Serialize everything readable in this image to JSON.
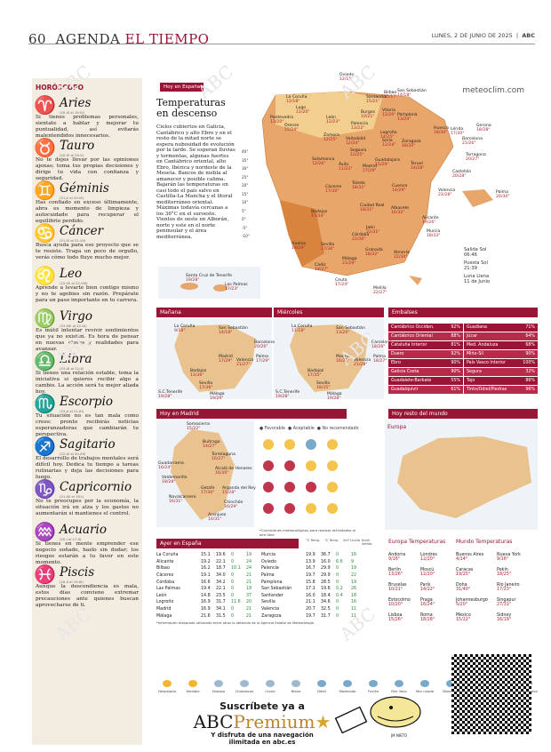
{
  "header": {
    "page": "60",
    "section1": "AGENDA",
    "section2": "EL TIEMPO",
    "date": "LUNES, 2 DE JUNIO DE 2025",
    "brand": "ABC"
  },
  "horoscope": {
    "title": "HORÓSCOPO",
    "signs": [
      {
        "glyph": "♈",
        "name": "Aries",
        "range": "(20-III al 19-IV)",
        "text": "Si tienes problemas personales, sientate a hablar y mejorar tu puntualidad, así evitarás malentendidos innecesarios."
      },
      {
        "glyph": "♉",
        "name": "Tauro",
        "range": "(20-IV al 20-V)",
        "text": "No te dejes llevar por las opiniones ajenas; toma tus propias decisiones y dirige tu vida con confianza y seguridad."
      },
      {
        "glyph": "♊",
        "name": "Géminis",
        "range": "(21-V al 20-VI)",
        "text": "Has confiado en exceso últimamente, abra es momento de limpieza y autocuidado para recuperar el equilibrio perdido."
      },
      {
        "glyph": "♋",
        "name": "Cáncer",
        "range": "(21-VI al 21-VII)",
        "text": "Busca ayuda para ese proyecto que se te resiste. Traga un poco de orgullo, verás cómo todo fluye mucho mejor."
      },
      {
        "glyph": "♌",
        "name": "Leo",
        "range": "(22-VII al 22-VIII)",
        "text": "Aprende a levarte bien contigo mismo y no te agobies sin razón. Prepárate para un paso importante en tu carrera."
      },
      {
        "glyph": "♍",
        "name": "Virgo",
        "range": "(23-VIII al 22-IX)",
        "text": "Es inútil intentar revivir sentimientos que ya no existen. Es hora de pensar en nuevas claves y realidades para avanzar."
      },
      {
        "glyph": "♎",
        "name": "Libra",
        "range": "(23-IX al 22-X)",
        "text": "Si tienes una relación estable, toma la iniciativa si quieres recibir algo a cambio. La acción será tu mejor aliada hoy."
      },
      {
        "glyph": "♏",
        "name": "Escorpio",
        "range": "(23-X al 21-XI)",
        "text": "Tu situación no es tan mala como crees: pronto recibirás noticias esperanzadoras que cambiarán tu perspectiva."
      },
      {
        "glyph": "♐",
        "name": "Sagitario",
        "range": "(22-XI al 20-XII)",
        "text": "El desarrollo de trabajos mentales será difícil hoy. Dedica tu tiempo a tareas rutinarias y deja las decisiones para luego."
      },
      {
        "glyph": "♑",
        "name": "Capricornio",
        "range": "(21-XII al 19-I)",
        "text": "No te preocupes por la economía, la situación irá en alza y los gastos no aumentarán si mantienes el control."
      },
      {
        "glyph": "♒",
        "name": "Acuario",
        "range": "(20-I al 17-II)",
        "text": "Si tienes en mente emprender ese negocio soñado, hazlo sin dudar; los riesgos estarán a tu favor en este momento."
      },
      {
        "glyph": "♓",
        "name": "Piscis",
        "range": "(18-II al 19-III)",
        "text": "Aunque la descendiencia es mala, estos días conviene extremar precauciones ante quienes buscan aprovecharse de ti."
      }
    ]
  },
  "today": {
    "tag": "Hoy en España",
    "title": "Temperaturas en descenso",
    "body": "Cielos cubiertos en Galicia, Cantábrico y alto Ebro y en el resto de la mitad norte se espera nubosidad de evolución por la tarde. Se esperan lluvias y tormentas, algunas fuertes en Cantábrico oriental, alto Ebro, Ibérica y nordeste de la Meseta. Bancos de niebla al amanecer y posible calima. Bajarán las temperaturas en casi todo el país salvo en Castilla-La Mancha y el litoral mediterráneo oriental. Máximas todavía cercanas a los 36°C en el suroeste. Vientos de oeste en Alborán, norte y este en el norte peninsular y el área mediterránea.",
    "brand": "meteoclim.com"
  },
  "scale": [
    "40°",
    "35°",
    "30°",
    "25°",
    "20°",
    "15°",
    "10°",
    "5°",
    "0°",
    "-5°",
    "-10°"
  ],
  "map_cities": [
    {
      "n": "La Coruña",
      "t": "12/18°"
    },
    {
      "n": "Lugo",
      "t": "11/20°"
    },
    {
      "n": "Oviedo",
      "t": "12/15°"
    },
    {
      "n": "Santander",
      "t": "15/21°"
    },
    {
      "n": "Bilbao",
      "t": "15/17°"
    },
    {
      "n": "San Sebastián",
      "t": "14/18°"
    },
    {
      "n": "Pontevedra",
      "t": "12/20°"
    },
    {
      "n": "Orense",
      "t": "15/24°"
    },
    {
      "n": "León",
      "t": "12/23°"
    },
    {
      "n": "Palencia",
      "t": "13/22°"
    },
    {
      "n": "Burgos",
      "t": "10/21°"
    },
    {
      "n": "Vitoria",
      "t": "12/20°"
    },
    {
      "n": "Pamplona",
      "t": "13/24°"
    },
    {
      "n": "Huesca",
      "t": "18/30°"
    },
    {
      "n": "Lérida",
      "t": "17/30°"
    },
    {
      "n": "Gerona",
      "t": "18/28°"
    },
    {
      "n": "Barcelona",
      "t": "21/26°"
    },
    {
      "n": "Logroño",
      "t": "14/25°"
    },
    {
      "n": "Soria",
      "t": "12/24°"
    },
    {
      "n": "Zaragoza",
      "t": "18/30°"
    },
    {
      "n": "Zamora",
      "t": "12/25°"
    },
    {
      "n": "Valladolid",
      "t": "12/24°"
    },
    {
      "n": "Segovia",
      "t": "12/25°"
    },
    {
      "n": "Salamanca",
      "t": "12/26°"
    },
    {
      "n": "Ávila",
      "t": "11/23°"
    },
    {
      "n": "Guadalajara",
      "t": "15/29°"
    },
    {
      "n": "Teruel",
      "t": "14/28°"
    },
    {
      "n": "Tarragona",
      "t": "20/27°"
    },
    {
      "n": "Madrid",
      "t": "17/29°"
    },
    {
      "n": "Castellón",
      "t": "20/28°"
    },
    {
      "n": "Cáceres",
      "t": "17/30°"
    },
    {
      "n": "Toledo",
      "t": "18/31°"
    },
    {
      "n": "Cuenca",
      "t": "14/29°"
    },
    {
      "n": "Valencia",
      "t": "21/28°"
    },
    {
      "n": "Palma",
      "t": "20/30°"
    },
    {
      "n": "Badajoz",
      "t": "17/34°"
    },
    {
      "n": "Ciudad Real",
      "t": "18/31°"
    },
    {
      "n": "Albacete",
      "t": "16/32°"
    },
    {
      "n": "Alicante",
      "t": "19/26°"
    },
    {
      "n": "Jaén",
      "t": "22/31°"
    },
    {
      "n": "Murcia",
      "t": "18/33°"
    },
    {
      "n": "Córdoba",
      "t": "21/36°"
    },
    {
      "n": "Huelva",
      "t": "19/29°"
    },
    {
      "n": "Sevilla",
      "t": "17/36°"
    },
    {
      "n": "Granada",
      "t": "18/32°"
    },
    {
      "n": "Almería",
      "t": "22/30°"
    },
    {
      "n": "Málaga",
      "t": "21/29°"
    },
    {
      "n": "Cádiz",
      "t": "18/27°"
    },
    {
      "n": "Ceuta",
      "t": "17/24°"
    },
    {
      "n": "Melilla",
      "t": "22/27°"
    },
    {
      "n": "Santa Cruz de Tenerife",
      "t": "19/28°"
    },
    {
      "n": "Las Palmas",
      "t": "17/23°"
    }
  ],
  "sun": {
    "rise_label": "Salida Sol",
    "rise": "06:46",
    "set_label": "Puesta Sol",
    "set": "21:39",
    "moon_label": "Luna Llena",
    "moon": "11 de Junio"
  },
  "tomorrow": {
    "label": "Mañana",
    "cities": [
      {
        "n": "La Coruña",
        "t": "9/18°"
      },
      {
        "n": "San Sebastián",
        "t": "14/18°"
      },
      {
        "n": "Barcelona",
        "t": "20/26°"
      },
      {
        "n": "Madrid",
        "t": "17/29°"
      },
      {
        "n": "Valencia",
        "t": "21/27°"
      },
      {
        "n": "Palma",
        "t": "17/29°"
      },
      {
        "n": "Badajoz",
        "t": "13/36°"
      },
      {
        "n": "Sevilla",
        "t": "17/36°"
      },
      {
        "n": "Málaga",
        "t": "19/29°"
      },
      {
        "n": "S.C.Tenerife",
        "t": "19/28°"
      }
    ]
  },
  "wednesday": {
    "label": "Miércoles",
    "cities": [
      {
        "n": "La Coruña",
        "t": "11/18°"
      },
      {
        "n": "San Sebastián",
        "t": "13/20°"
      },
      {
        "n": "Barcelona",
        "t": "18/26°"
      },
      {
        "n": "Madrid",
        "t": "16/28°"
      },
      {
        "n": "Valencia",
        "t": "21/28°"
      },
      {
        "n": "Palma",
        "t": "18/27°"
      },
      {
        "n": "Badajoz",
        "t": "17/35°"
      },
      {
        "n": "Sevilla",
        "t": "18/35°"
      },
      {
        "n": "Málaga",
        "t": "19/28°"
      },
      {
        "n": "S.C.Tenerife",
        "t": "19/28°"
      }
    ]
  },
  "embalses": {
    "label": "Embalses",
    "left": [
      [
        "Cantábrico Occiden.",
        "92%"
      ],
      [
        "Cantábrico Oriental",
        "88%"
      ],
      [
        "Cataluña Interior",
        "81%"
      ],
      [
        "Duero",
        "92%"
      ],
      [
        "Ebro",
        "90%"
      ],
      [
        "Galicia Costa",
        "90%"
      ],
      [
        "Guadalete-Barbate",
        "55%"
      ],
      [
        "Guadalquivir",
        "61%"
      ]
    ],
    "right": [
      [
        "Guadiana",
        "71%"
      ],
      [
        "Júcar",
        "64%"
      ],
      [
        "Med. Andaluza",
        "68%"
      ],
      [
        "Miño-Sil",
        "90%"
      ],
      [
        "País Vasco Interior",
        "100%"
      ],
      [
        "Segura",
        "32%"
      ],
      [
        "Tajo",
        "86%"
      ],
      [
        "Tinto/Odiel/Piedras",
        "96%"
      ]
    ]
  },
  "madrid": {
    "label": "Hoy en Madrid",
    "cities": [
      {
        "n": "Somosierra",
        "t": "15/22°"
      },
      {
        "n": "Buitrago",
        "t": "14/27°"
      },
      {
        "n": "Torrelaguna",
        "t": "16/27°"
      },
      {
        "n": "Guadarrama",
        "t": "16/24°"
      },
      {
        "n": "Alcalá de Henares",
        "t": "16/30°"
      },
      {
        "n": "Valdemorillo",
        "t": "18/28°"
      },
      {
        "n": "Getafe",
        "t": "17/30°"
      },
      {
        "n": "Arganda del Rey",
        "t": "15/28°"
      },
      {
        "n": "Navalcarnero",
        "t": "16/31°"
      },
      {
        "n": "Chinchón",
        "t": "16/29°"
      },
      {
        "n": "Aranjuez",
        "t": "16/31°"
      }
    ]
  },
  "activities": {
    "fav": "Favorable",
    "ok": "Aceptable",
    "no": "No recomendado",
    "note": "*Condiciones meteorológicas para realizar actividades al aire libre"
  },
  "world_map": {
    "label": "Hoy resto del mundo",
    "region": "Europa"
  },
  "ayer": {
    "label": "Ayer en España",
    "head": [
      "°C Temp.",
      "°C Temp.",
      "l/m² Lluvia",
      "Km/h Viento"
    ],
    "left": [
      [
        "La Coruña",
        "15.1",
        "19.6",
        "0",
        "19"
      ],
      [
        "Alicante",
        "19.2",
        "22.1",
        "0",
        "24"
      ],
      [
        "Bilbao",
        "16.2",
        "18.7",
        "10.1",
        "24"
      ],
      [
        "Cáceres",
        "19.1",
        "34.0",
        "0",
        "21"
      ],
      [
        "Córdoba",
        "16.6",
        "34.2",
        "0",
        "21"
      ],
      [
        "Las Palmas",
        "19.4",
        "22.1",
        "0",
        "19"
      ],
      [
        "León",
        "14.8",
        "23.5",
        "0",
        "37"
      ],
      [
        "Logroño",
        "16.9",
        "31.7",
        "11.6",
        "20"
      ],
      [
        "Madrid",
        "16.9",
        "34.1",
        "0",
        "21"
      ],
      [
        "Málaga",
        "21.6",
        "31.5",
        "0",
        "21"
      ]
    ],
    "right": [
      [
        "Murcia",
        "19.9",
        "36.7",
        "0",
        "16"
      ],
      [
        "Oviedo",
        "13.9",
        "16.0",
        "6.6",
        "9"
      ],
      [
        "Palencia",
        "16.7",
        "29.9",
        "0",
        "19"
      ],
      [
        "Palma",
        "19.7",
        "29.9",
        "0",
        "22"
      ],
      [
        "Pamplona",
        "15.8",
        "28.5",
        "0",
        "19"
      ],
      [
        "San Sebastián",
        "17.1",
        "19.6",
        "0.2",
        "26"
      ],
      [
        "Santander",
        "16.0",
        "18.4",
        "0.4",
        "18"
      ],
      [
        "Sevilla",
        "21.1",
        "34.6",
        "0",
        "16"
      ],
      [
        "Valencia",
        "20.7",
        "32.5",
        "0",
        "11"
      ],
      [
        "Zaragoza",
        "19.7",
        "31.7",
        "0",
        "11"
      ]
    ],
    "note": "*Información elaborada utilizando entre otros la obtenida de la Agencia Estatal de Meteorología"
  },
  "eu": {
    "label": "Europa Temperaturas",
    "cities": [
      [
        "Andorra",
        "9/16°"
      ],
      [
        "Londres",
        "12/20°"
      ],
      [
        "Berlín",
        "13/26°"
      ],
      [
        "Moscú",
        "12/20°"
      ],
      [
        "Bruselas",
        "10/21°"
      ],
      [
        "París",
        "14/22°"
      ],
      [
        "Estocolmo",
        "10/20°"
      ],
      [
        "Praga",
        "16/24°"
      ],
      [
        "Lisboa",
        "15/26°"
      ],
      [
        "Roma",
        "18/28°"
      ]
    ]
  },
  "world": {
    "label": "Mundo Temperaturas",
    "cities": [
      [
        "Buenos Aires",
        "4/14°"
      ],
      [
        "Nueva York",
        "9/16°"
      ],
      [
        "Caracas",
        "19/25°"
      ],
      [
        "Pekín",
        "18/25°"
      ],
      [
        "Doha",
        "31/40°"
      ],
      [
        "Río Janeiro",
        "17/23°"
      ],
      [
        "Johannesburgo",
        "5/20°"
      ],
      [
        "Singapur",
        "27/31°"
      ],
      [
        "México",
        "15/22°"
      ],
      [
        "Sidney",
        "16/19°"
      ]
    ]
  },
  "legend": [
    "Despejado",
    "Variable",
    "Nuboso",
    "Chubascos",
    "Lluvia",
    "Nieve",
    "Débil",
    "Moderado",
    "Fuerte",
    "Mar llana",
    "Mar rizada",
    "Marejada",
    "Fuerte marejada",
    "Mar gruesa",
    "Mar gruesa"
  ],
  "promo": {
    "l1": "Suscríbete ya a",
    "abc": "ABC",
    "prem": "Premium",
    "l3": "Y disfruta de una navegación",
    "l4": "ilimitada en abc.es",
    "author": "JM NIETO"
  },
  "watermark": "ABC",
  "colors": {
    "accent": "#9a1436",
    "map_hot": "#e8a66a"
  }
}
